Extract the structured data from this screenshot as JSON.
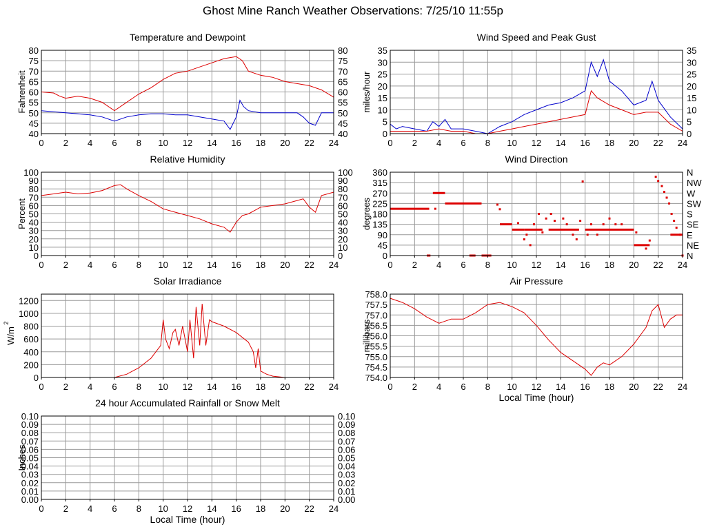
{
  "page_title": "Ghost Mine Ranch Weather Observations: 7/25/10 11:55p",
  "colors": {
    "red": "#dd0000",
    "blue": "#0000cc",
    "grid": "#999999"
  },
  "chart_data": [
    {
      "id": "temp",
      "type": "line",
      "title": "Temperature and Dewpoint",
      "ylabel": "Fahrenheit",
      "xlabel": "",
      "xlim": [
        0,
        24
      ],
      "ylim": [
        40,
        80
      ],
      "xticks": [
        0,
        2,
        4,
        6,
        8,
        10,
        12,
        14,
        16,
        18,
        20,
        22,
        24
      ],
      "yticks": [
        40,
        45,
        50,
        55,
        60,
        65,
        70,
        75,
        80
      ],
      "yticklabels": [
        "40",
        "45",
        "50",
        "55",
        "60",
        "65",
        "70",
        "75",
        "80"
      ],
      "right_axis_labels": [
        "40",
        "45",
        "50",
        "55",
        "60",
        "65",
        "70",
        "75",
        "80"
      ],
      "grid": true,
      "series": [
        {
          "color": "#dd0000",
          "x": [
            0,
            1,
            1.5,
            2,
            3,
            4,
            5,
            6,
            7,
            8,
            9,
            10,
            11,
            12,
            13,
            14,
            15,
            16,
            16.5,
            17,
            18,
            19,
            20,
            21,
            22,
            23,
            24
          ],
          "y": [
            60,
            59.5,
            58,
            57,
            58,
            57,
            55,
            51,
            55,
            59,
            62,
            66,
            69,
            70,
            72,
            74,
            76,
            77,
            75,
            70,
            68,
            67,
            65,
            64,
            63,
            61,
            57.5
          ]
        },
        {
          "color": "#0000cc",
          "x": [
            0,
            1,
            2,
            3,
            4,
            5,
            6,
            7,
            8,
            9,
            10,
            11,
            12,
            13,
            14,
            15,
            15.5,
            16,
            16.3,
            16.6,
            17,
            18,
            19,
            20,
            21,
            21.5,
            22,
            22.5,
            23,
            24
          ],
          "y": [
            51,
            50.5,
            50,
            49.5,
            49,
            48,
            46,
            48,
            49,
            49.5,
            49.5,
            49,
            49,
            48,
            47,
            46,
            42,
            48,
            56,
            53,
            51,
            50,
            50,
            50,
            50,
            48,
            45,
            44,
            50,
            50
          ]
        }
      ]
    },
    {
      "id": "wind",
      "type": "line",
      "title": "Wind Speed and Peak Gust",
      "ylabel": "miles/hour",
      "xlabel": "",
      "xlim": [
        0,
        24
      ],
      "ylim": [
        0,
        35
      ],
      "xticks": [
        0,
        2,
        4,
        6,
        8,
        10,
        12,
        14,
        16,
        18,
        20,
        22,
        24
      ],
      "yticks": [
        0,
        5,
        10,
        15,
        20,
        25,
        30,
        35
      ],
      "yticklabels": [
        "0",
        "5",
        "10",
        "15",
        "20",
        "25",
        "30",
        "35"
      ],
      "right_axis_labels": [
        "0",
        "5",
        "10",
        "15",
        "20",
        "25",
        "30",
        "35"
      ],
      "grid": true,
      "series": [
        {
          "color": "#0000cc",
          "x": [
            0,
            0.5,
            1,
            2,
            3,
            3.5,
            4,
            4.5,
            5,
            6,
            7,
            8,
            9,
            10,
            11,
            12,
            13,
            14,
            15,
            16,
            16.5,
            17,
            17.5,
            18,
            19,
            20,
            21,
            21.5,
            22,
            23,
            24
          ],
          "y": [
            4,
            2,
            3,
            2,
            1,
            5,
            3,
            6,
            2,
            2,
            1,
            0,
            3,
            5,
            8,
            10,
            12,
            13,
            15,
            18,
            30,
            24,
            31,
            22,
            18,
            12,
            14,
            22,
            14,
            7,
            2
          ]
        },
        {
          "color": "#dd0000",
          "x": [
            0,
            1,
            2,
            3,
            4,
            5,
            6,
            7,
            8,
            9,
            10,
            11,
            12,
            13,
            14,
            15,
            16,
            16.5,
            17,
            18,
            19,
            20,
            21,
            22,
            23,
            24
          ],
          "y": [
            1,
            1,
            1,
            1,
            2,
            1,
            1,
            0,
            0,
            1,
            2,
            3,
            4,
            5,
            6,
            7,
            8,
            18,
            15,
            12,
            10,
            8,
            9,
            9,
            4,
            1
          ]
        }
      ]
    },
    {
      "id": "rh",
      "type": "line",
      "title": "Relative Humidity",
      "ylabel": "Percent",
      "xlabel": "",
      "xlim": [
        0,
        24
      ],
      "ylim": [
        0,
        100
      ],
      "xticks": [
        0,
        2,
        4,
        6,
        8,
        10,
        12,
        14,
        16,
        18,
        20,
        22,
        24
      ],
      "yticks": [
        0,
        10,
        20,
        30,
        40,
        50,
        60,
        70,
        80,
        90,
        100
      ],
      "yticklabels": [
        "0",
        "10",
        "20",
        "30",
        "40",
        "50",
        "60",
        "70",
        "80",
        "90",
        "100"
      ],
      "right_axis_labels": [
        "0",
        "10",
        "20",
        "30",
        "40",
        "50",
        "60",
        "70",
        "80",
        "90",
        "100"
      ],
      "grid": true,
      "series": [
        {
          "color": "#dd0000",
          "x": [
            0,
            1,
            2,
            3,
            4,
            5,
            6,
            6.5,
            7,
            8,
            9,
            10,
            11,
            12,
            13,
            14,
            15,
            15.5,
            16,
            16.5,
            17,
            18,
            19,
            20,
            21,
            21.5,
            22,
            22.5,
            23,
            24
          ],
          "y": [
            72,
            74,
            76,
            74,
            75,
            78,
            84,
            85,
            80,
            72,
            65,
            56,
            52,
            48,
            44,
            38,
            34,
            28,
            40,
            48,
            50,
            58,
            60,
            62,
            66,
            68,
            58,
            52,
            72,
            76
          ]
        }
      ]
    },
    {
      "id": "winddir",
      "type": "scatter",
      "title": "Wind Direction",
      "ylabel": "degrees",
      "xlabel": "",
      "xlim": [
        0,
        24
      ],
      "ylim": [
        0,
        360
      ],
      "xticks": [
        0,
        2,
        4,
        6,
        8,
        10,
        12,
        14,
        16,
        18,
        20,
        22,
        24
      ],
      "yticks": [
        0,
        45,
        90,
        135,
        180,
        225,
        270,
        315,
        360
      ],
      "yticklabels": [
        "0",
        "45",
        "90",
        "135",
        "180",
        "225",
        "270",
        "315",
        "360"
      ],
      "right_axis_labels": [
        "N",
        "NE",
        "E",
        "SE",
        "S",
        "SW",
        "W",
        "NW",
        "N"
      ],
      "grid": true,
      "series": [
        {
          "color": "#dd0000",
          "segments": [
            {
              "x": [
                0,
                3.2
              ],
              "y": 202
            },
            {
              "x": [
                3.5,
                4.5
              ],
              "y": 270
            },
            {
              "x": [
                4.5,
                7.5
              ],
              "y": 225
            },
            {
              "x": [
                9,
                10
              ],
              "y": 135
            },
            {
              "x": [
                10,
                11
              ],
              "y": 112
            },
            {
              "x": [
                11,
                12.5
              ],
              "y": 112
            },
            {
              "x": [
                13,
                14
              ],
              "y": 112
            },
            {
              "x": [
                14,
                15.5
              ],
              "y": 112
            },
            {
              "x": [
                16,
                20
              ],
              "y": 112
            },
            {
              "x": [
                20,
                21.3
              ],
              "y": 45
            },
            {
              "x": [
                3,
                3.3
              ],
              "y": 0
            },
            {
              "x": [
                6.5,
                7
              ],
              "y": 0
            },
            {
              "x": [
                7.5,
                8.3
              ],
              "y": 0
            },
            {
              "x": [
                23,
                24
              ],
              "y": 90
            }
          ],
          "points": [
            {
              "x": 3.7,
              "y": 202
            },
            {
              "x": 8.8,
              "y": 220
            },
            {
              "x": 9,
              "y": 200
            },
            {
              "x": 10.5,
              "y": 140
            },
            {
              "x": 11,
              "y": 70
            },
            {
              "x": 11.2,
              "y": 90
            },
            {
              "x": 11.5,
              "y": 45
            },
            {
              "x": 11.8,
              "y": 135
            },
            {
              "x": 12.2,
              "y": 180
            },
            {
              "x": 12.5,
              "y": 100
            },
            {
              "x": 12.8,
              "y": 160
            },
            {
              "x": 13.2,
              "y": 180
            },
            {
              "x": 13.5,
              "y": 150
            },
            {
              "x": 14.2,
              "y": 160
            },
            {
              "x": 14.5,
              "y": 135
            },
            {
              "x": 15,
              "y": 90
            },
            {
              "x": 15.3,
              "y": 70
            },
            {
              "x": 15.6,
              "y": 150
            },
            {
              "x": 15.8,
              "y": 320
            },
            {
              "x": 16.2,
              "y": 90
            },
            {
              "x": 16.5,
              "y": 135
            },
            {
              "x": 17,
              "y": 90
            },
            {
              "x": 17.5,
              "y": 135
            },
            {
              "x": 18,
              "y": 160
            },
            {
              "x": 18.5,
              "y": 135
            },
            {
              "x": 19,
              "y": 135
            },
            {
              "x": 20.2,
              "y": 100
            },
            {
              "x": 21,
              "y": 30
            },
            {
              "x": 21.3,
              "y": 65
            },
            {
              "x": 21.8,
              "y": 340
            },
            {
              "x": 22,
              "y": 322
            },
            {
              "x": 22.3,
              "y": 300
            },
            {
              "x": 22.5,
              "y": 275
            },
            {
              "x": 22.7,
              "y": 250
            },
            {
              "x": 22.9,
              "y": 225
            },
            {
              "x": 23.1,
              "y": 180
            },
            {
              "x": 23.3,
              "y": 150
            },
            {
              "x": 23.5,
              "y": 120
            },
            {
              "x": 23.8,
              "y": 90
            },
            {
              "x": 24,
              "y": 0
            }
          ]
        }
      ]
    },
    {
      "id": "solar",
      "type": "line",
      "title": "Solar Irradiance",
      "ylabel": "W/m",
      "ylabel_sup": "2",
      "xlabel": "",
      "xlim": [
        0,
        24
      ],
      "ylim": [
        0,
        1300
      ],
      "xticks": [
        0,
        2,
        4,
        6,
        8,
        10,
        12,
        14,
        16,
        18,
        20,
        22,
        24
      ],
      "yticks": [
        0,
        200,
        400,
        600,
        800,
        1000,
        1200
      ],
      "yticklabels": [
        "0",
        "200",
        "400",
        "600",
        "800",
        "1000",
        "1200"
      ],
      "right_axis_labels": [],
      "grid": true,
      "series": [
        {
          "color": "#dd0000",
          "x": [
            0,
            6,
            7,
            8,
            9,
            9.8,
            10,
            10.2,
            10.5,
            10.8,
            11,
            11.3,
            11.6,
            12,
            12.2,
            12.5,
            12.7,
            13,
            13.2,
            13.5,
            13.8,
            14,
            15,
            16,
            17,
            17.4,
            17.6,
            17.8,
            18,
            18.5,
            19,
            20,
            24
          ],
          "y": [
            0,
            0,
            50,
            150,
            300,
            500,
            900,
            600,
            450,
            700,
            750,
            500,
            800,
            400,
            900,
            300,
            1100,
            500,
            1150,
            500,
            900,
            870,
            800,
            700,
            550,
            400,
            150,
            450,
            100,
            50,
            20,
            0,
            0
          ]
        }
      ]
    },
    {
      "id": "pressure",
      "type": "line",
      "title": "Air Pressure",
      "ylabel": "millibars",
      "xlabel": "Local Time (hour)",
      "xlim": [
        0,
        24
      ],
      "ylim": [
        754.0,
        758.0
      ],
      "xticks": [
        0,
        2,
        4,
        6,
        8,
        10,
        12,
        14,
        16,
        18,
        20,
        22,
        24
      ],
      "yticks": [
        754.0,
        754.5,
        755.0,
        755.5,
        756.0,
        756.5,
        757.0,
        757.5,
        758.0
      ],
      "yticklabels": [
        "754.0",
        "754.5",
        "755.0",
        "755.5",
        "756.0",
        "756.5",
        "757.0",
        "757.5",
        "758.0"
      ],
      "right_axis_labels": [],
      "grid": true,
      "series": [
        {
          "color": "#dd0000",
          "x": [
            0,
            1,
            2,
            3,
            4,
            4.5,
            5,
            6,
            7,
            8,
            9,
            10,
            11,
            12,
            13,
            14,
            15,
            16,
            16.5,
            17,
            17.5,
            18,
            19,
            20,
            21,
            21.5,
            22,
            22.5,
            23,
            23.5,
            24
          ],
          "y": [
            757.8,
            757.6,
            757.3,
            756.9,
            756.6,
            756.7,
            756.8,
            756.8,
            757.1,
            757.5,
            757.6,
            757.4,
            757.1,
            756.5,
            755.8,
            755.2,
            754.8,
            754.4,
            754.1,
            754.5,
            754.7,
            754.6,
            755.0,
            755.6,
            756.4,
            757.2,
            757.5,
            756.4,
            756.8,
            757.0,
            757.0
          ]
        }
      ]
    },
    {
      "id": "rain",
      "type": "line",
      "title": "24 hour Accumulated Rainfall or Snow Melt",
      "ylabel": "Inches",
      "xlabel": "Local Time (hour)",
      "xlim": [
        0,
        24
      ],
      "ylim": [
        0,
        0.1
      ],
      "xticks": [
        0,
        2,
        4,
        6,
        8,
        10,
        12,
        14,
        16,
        18,
        20,
        22,
        24
      ],
      "yticks": [
        0,
        0.01,
        0.02,
        0.03,
        0.04,
        0.05,
        0.06,
        0.07,
        0.08,
        0.09,
        0.1
      ],
      "yticklabels": [
        "0.00",
        "0.01",
        "0.02",
        "0.03",
        "0.04",
        "0.05",
        "0.06",
        "0.07",
        "0.08",
        "0.09",
        "0.10"
      ],
      "right_axis_labels": [
        "0.00",
        "0.01",
        "0.02",
        "0.03",
        "0.04",
        "0.05",
        "0.06",
        "0.07",
        "0.08",
        "0.09",
        "0.10"
      ],
      "grid": true,
      "series": [
        {
          "color": "#dd0000",
          "x": [
            0,
            24
          ],
          "y": [
            0,
            0
          ]
        }
      ]
    }
  ]
}
